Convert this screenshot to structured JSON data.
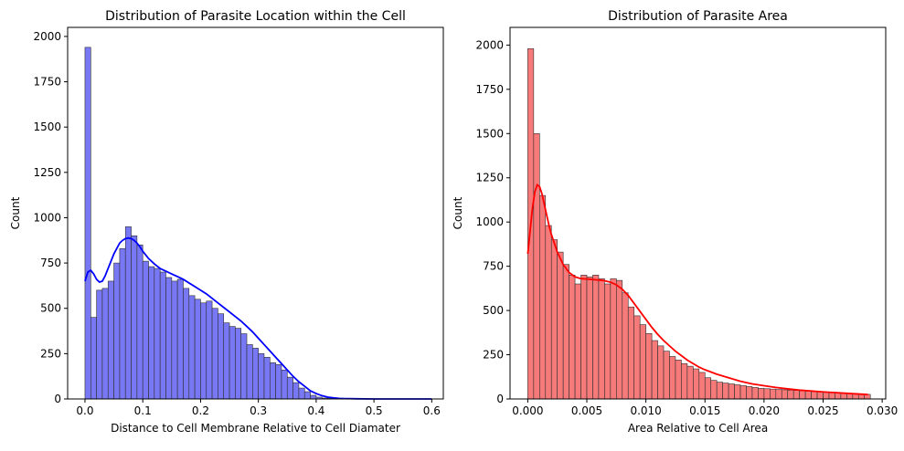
{
  "chart_data": [
    {
      "type": "histogram",
      "title": "Distribution of Parasite Location within the Cell",
      "xlabel": "Distance to Cell Membrane Relative to Cell Diamater",
      "ylabel": "Count",
      "xlim": [
        -0.03,
        0.62
      ],
      "ylim": [
        0,
        2050
      ],
      "xticks": [
        0.0,
        0.1,
        0.2,
        0.3,
        0.4,
        0.5,
        0.6
      ],
      "xtick_labels": [
        "0.0",
        "0.1",
        "0.2",
        "0.3",
        "0.4",
        "0.5",
        "0.6"
      ],
      "yticks": [
        0,
        250,
        500,
        750,
        1000,
        1250,
        1500,
        1750,
        2000
      ],
      "ytick_labels": [
        "0",
        "250",
        "500",
        "750",
        "1000",
        "1250",
        "1500",
        "1750",
        "2000"
      ],
      "bar_color": "#7878f4",
      "edge_color": "#2f2f2f",
      "kde_color": "#0000ff",
      "bin_start": 0.0,
      "bin_width": 0.01,
      "counts": [
        1940,
        450,
        600,
        610,
        650,
        750,
        830,
        950,
        900,
        850,
        760,
        730,
        720,
        700,
        670,
        650,
        660,
        610,
        570,
        550,
        530,
        540,
        500,
        470,
        420,
        400,
        390,
        360,
        300,
        280,
        250,
        230,
        200,
        190,
        160,
        120,
        90,
        60,
        40,
        20,
        10,
        5,
        3,
        2,
        1,
        0,
        0,
        0,
        0,
        0,
        0,
        0,
        0,
        0,
        0,
        0,
        0,
        0,
        0,
        0,
        0
      ],
      "kde": {
        "x": [
          0.0,
          0.005,
          0.01,
          0.015,
          0.02,
          0.025,
          0.03,
          0.035,
          0.04,
          0.045,
          0.05,
          0.055,
          0.06,
          0.065,
          0.07,
          0.075,
          0.08,
          0.085,
          0.09,
          0.095,
          0.1,
          0.11,
          0.12,
          0.13,
          0.14,
          0.15,
          0.16,
          0.17,
          0.18,
          0.19,
          0.2,
          0.21,
          0.22,
          0.23,
          0.24,
          0.25,
          0.26,
          0.27,
          0.28,
          0.29,
          0.3,
          0.31,
          0.32,
          0.33,
          0.34,
          0.35,
          0.36,
          0.37,
          0.38,
          0.39,
          0.4,
          0.41,
          0.42,
          0.43,
          0.44,
          0.45,
          0.47,
          0.5,
          0.55,
          0.6
        ],
        "y": [
          650,
          700,
          710,
          690,
          660,
          645,
          650,
          680,
          720,
          760,
          800,
          830,
          860,
          875,
          885,
          888,
          885,
          875,
          860,
          840,
          815,
          775,
          745,
          720,
          705,
          690,
          675,
          660,
          640,
          620,
          600,
          580,
          555,
          530,
          505,
          480,
          455,
          430,
          400,
          370,
          335,
          300,
          265,
          230,
          195,
          160,
          125,
          95,
          70,
          45,
          30,
          18,
          10,
          6,
          3,
          2,
          1,
          0,
          0,
          0
        ]
      }
    },
    {
      "type": "histogram",
      "title": "Distribution of Parasite Area",
      "xlabel": "Area Relative to Cell Area",
      "ylabel": "Count",
      "xlim": [
        -0.0015,
        0.0303
      ],
      "ylim": [
        0,
        2100
      ],
      "xticks": [
        0.0,
        0.005,
        0.01,
        0.015,
        0.02,
        0.025,
        0.03
      ],
      "xtick_labels": [
        "0.000",
        "0.005",
        "0.010",
        "0.015",
        "0.020",
        "0.025",
        "0.030"
      ],
      "yticks": [
        0,
        250,
        500,
        750,
        1000,
        1250,
        1500,
        1750,
        2000
      ],
      "ytick_labels": [
        "0",
        "250",
        "500",
        "750",
        "1000",
        "1250",
        "1500",
        "1750",
        "2000"
      ],
      "bar_color": "#f77a7a",
      "edge_color": "#2f2f2f",
      "kde_color": "#ff0000",
      "bin_start": 0.0,
      "bin_width": 0.0005,
      "counts": [
        1980,
        1500,
        1150,
        980,
        900,
        830,
        760,
        700,
        650,
        700,
        690,
        700,
        680,
        650,
        680,
        670,
        600,
        520,
        470,
        420,
        370,
        330,
        300,
        270,
        240,
        220,
        200,
        185,
        170,
        150,
        120,
        105,
        95,
        90,
        85,
        80,
        75,
        70,
        65,
        60,
        58,
        56,
        54,
        52,
        50,
        48,
        46,
        44,
        42,
        40,
        38,
        36,
        34,
        32,
        30,
        28,
        28,
        26
      ],
      "kde": {
        "x": [
          0.0,
          0.0002,
          0.0004,
          0.0006,
          0.0008,
          0.001,
          0.0012,
          0.0014,
          0.0016,
          0.0018,
          0.002,
          0.0025,
          0.003,
          0.0035,
          0.004,
          0.0045,
          0.005,
          0.0055,
          0.006,
          0.0065,
          0.007,
          0.0075,
          0.008,
          0.0085,
          0.009,
          0.0095,
          0.01,
          0.0105,
          0.011,
          0.0115,
          0.012,
          0.0125,
          0.013,
          0.0135,
          0.014,
          0.0145,
          0.015,
          0.016,
          0.017,
          0.018,
          0.019,
          0.02,
          0.021,
          0.022,
          0.023,
          0.024,
          0.025,
          0.026,
          0.027,
          0.028,
          0.0288
        ],
        "y": [
          820,
          950,
          1080,
          1170,
          1210,
          1200,
          1160,
          1100,
          1040,
          980,
          930,
          830,
          760,
          715,
          690,
          680,
          678,
          675,
          672,
          668,
          660,
          645,
          620,
          585,
          540,
          495,
          450,
          405,
          365,
          330,
          300,
          270,
          245,
          220,
          200,
          180,
          165,
          140,
          120,
          100,
          85,
          75,
          65,
          57,
          50,
          45,
          40,
          36,
          32,
          28,
          25
        ]
      }
    }
  ]
}
